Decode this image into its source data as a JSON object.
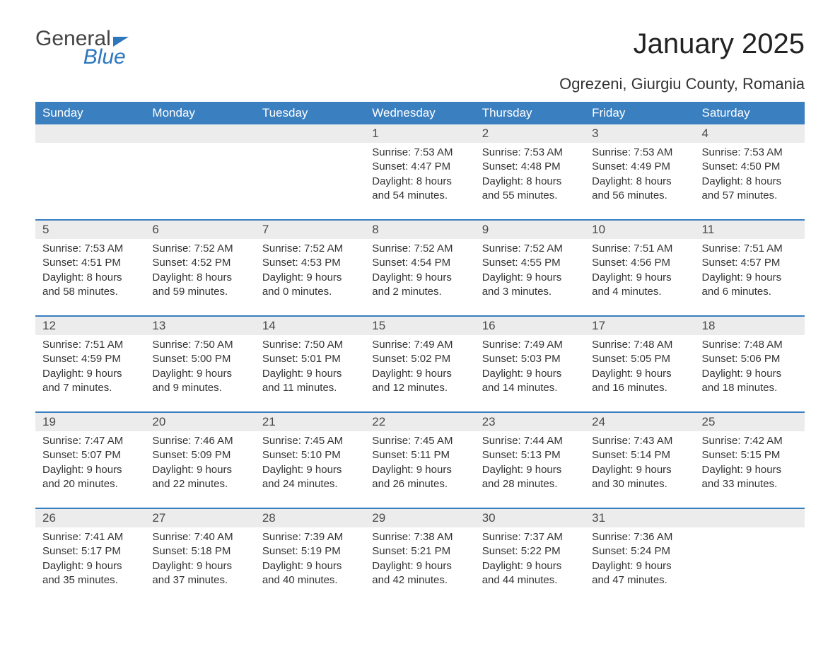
{
  "logo": {
    "word1": "General",
    "word2": "Blue"
  },
  "title": "January 2025",
  "location": "Ogrezeni, Giurgiu County, Romania",
  "colors": {
    "header_bg": "#3a7fc0",
    "header_text": "#ffffff",
    "daynum_bg": "#ececec",
    "body_text": "#333333",
    "accent": "#2c77bd",
    "page_bg": "#ffffff"
  },
  "typography": {
    "title_fontsize": 40,
    "location_fontsize": 22,
    "weekday_fontsize": 17,
    "daynum_fontsize": 17,
    "body_fontsize": 15
  },
  "weekdays": [
    "Sunday",
    "Monday",
    "Tuesday",
    "Wednesday",
    "Thursday",
    "Friday",
    "Saturday"
  ],
  "weeks": [
    [
      null,
      null,
      null,
      {
        "n": "1",
        "sunrise": "Sunrise: 7:53 AM",
        "sunset": "Sunset: 4:47 PM",
        "d1": "Daylight: 8 hours",
        "d2": "and 54 minutes."
      },
      {
        "n": "2",
        "sunrise": "Sunrise: 7:53 AM",
        "sunset": "Sunset: 4:48 PM",
        "d1": "Daylight: 8 hours",
        "d2": "and 55 minutes."
      },
      {
        "n": "3",
        "sunrise": "Sunrise: 7:53 AM",
        "sunset": "Sunset: 4:49 PM",
        "d1": "Daylight: 8 hours",
        "d2": "and 56 minutes."
      },
      {
        "n": "4",
        "sunrise": "Sunrise: 7:53 AM",
        "sunset": "Sunset: 4:50 PM",
        "d1": "Daylight: 8 hours",
        "d2": "and 57 minutes."
      }
    ],
    [
      {
        "n": "5",
        "sunrise": "Sunrise: 7:53 AM",
        "sunset": "Sunset: 4:51 PM",
        "d1": "Daylight: 8 hours",
        "d2": "and 58 minutes."
      },
      {
        "n": "6",
        "sunrise": "Sunrise: 7:52 AM",
        "sunset": "Sunset: 4:52 PM",
        "d1": "Daylight: 8 hours",
        "d2": "and 59 minutes."
      },
      {
        "n": "7",
        "sunrise": "Sunrise: 7:52 AM",
        "sunset": "Sunset: 4:53 PM",
        "d1": "Daylight: 9 hours",
        "d2": "and 0 minutes."
      },
      {
        "n": "8",
        "sunrise": "Sunrise: 7:52 AM",
        "sunset": "Sunset: 4:54 PM",
        "d1": "Daylight: 9 hours",
        "d2": "and 2 minutes."
      },
      {
        "n": "9",
        "sunrise": "Sunrise: 7:52 AM",
        "sunset": "Sunset: 4:55 PM",
        "d1": "Daylight: 9 hours",
        "d2": "and 3 minutes."
      },
      {
        "n": "10",
        "sunrise": "Sunrise: 7:51 AM",
        "sunset": "Sunset: 4:56 PM",
        "d1": "Daylight: 9 hours",
        "d2": "and 4 minutes."
      },
      {
        "n": "11",
        "sunrise": "Sunrise: 7:51 AM",
        "sunset": "Sunset: 4:57 PM",
        "d1": "Daylight: 9 hours",
        "d2": "and 6 minutes."
      }
    ],
    [
      {
        "n": "12",
        "sunrise": "Sunrise: 7:51 AM",
        "sunset": "Sunset: 4:59 PM",
        "d1": "Daylight: 9 hours",
        "d2": "and 7 minutes."
      },
      {
        "n": "13",
        "sunrise": "Sunrise: 7:50 AM",
        "sunset": "Sunset: 5:00 PM",
        "d1": "Daylight: 9 hours",
        "d2": "and 9 minutes."
      },
      {
        "n": "14",
        "sunrise": "Sunrise: 7:50 AM",
        "sunset": "Sunset: 5:01 PM",
        "d1": "Daylight: 9 hours",
        "d2": "and 11 minutes."
      },
      {
        "n": "15",
        "sunrise": "Sunrise: 7:49 AM",
        "sunset": "Sunset: 5:02 PM",
        "d1": "Daylight: 9 hours",
        "d2": "and 12 minutes."
      },
      {
        "n": "16",
        "sunrise": "Sunrise: 7:49 AM",
        "sunset": "Sunset: 5:03 PM",
        "d1": "Daylight: 9 hours",
        "d2": "and 14 minutes."
      },
      {
        "n": "17",
        "sunrise": "Sunrise: 7:48 AM",
        "sunset": "Sunset: 5:05 PM",
        "d1": "Daylight: 9 hours",
        "d2": "and 16 minutes."
      },
      {
        "n": "18",
        "sunrise": "Sunrise: 7:48 AM",
        "sunset": "Sunset: 5:06 PM",
        "d1": "Daylight: 9 hours",
        "d2": "and 18 minutes."
      }
    ],
    [
      {
        "n": "19",
        "sunrise": "Sunrise: 7:47 AM",
        "sunset": "Sunset: 5:07 PM",
        "d1": "Daylight: 9 hours",
        "d2": "and 20 minutes."
      },
      {
        "n": "20",
        "sunrise": "Sunrise: 7:46 AM",
        "sunset": "Sunset: 5:09 PM",
        "d1": "Daylight: 9 hours",
        "d2": "and 22 minutes."
      },
      {
        "n": "21",
        "sunrise": "Sunrise: 7:45 AM",
        "sunset": "Sunset: 5:10 PM",
        "d1": "Daylight: 9 hours",
        "d2": "and 24 minutes."
      },
      {
        "n": "22",
        "sunrise": "Sunrise: 7:45 AM",
        "sunset": "Sunset: 5:11 PM",
        "d1": "Daylight: 9 hours",
        "d2": "and 26 minutes."
      },
      {
        "n": "23",
        "sunrise": "Sunrise: 7:44 AM",
        "sunset": "Sunset: 5:13 PM",
        "d1": "Daylight: 9 hours",
        "d2": "and 28 minutes."
      },
      {
        "n": "24",
        "sunrise": "Sunrise: 7:43 AM",
        "sunset": "Sunset: 5:14 PM",
        "d1": "Daylight: 9 hours",
        "d2": "and 30 minutes."
      },
      {
        "n": "25",
        "sunrise": "Sunrise: 7:42 AM",
        "sunset": "Sunset: 5:15 PM",
        "d1": "Daylight: 9 hours",
        "d2": "and 33 minutes."
      }
    ],
    [
      {
        "n": "26",
        "sunrise": "Sunrise: 7:41 AM",
        "sunset": "Sunset: 5:17 PM",
        "d1": "Daylight: 9 hours",
        "d2": "and 35 minutes."
      },
      {
        "n": "27",
        "sunrise": "Sunrise: 7:40 AM",
        "sunset": "Sunset: 5:18 PM",
        "d1": "Daylight: 9 hours",
        "d2": "and 37 minutes."
      },
      {
        "n": "28",
        "sunrise": "Sunrise: 7:39 AM",
        "sunset": "Sunset: 5:19 PM",
        "d1": "Daylight: 9 hours",
        "d2": "and 40 minutes."
      },
      {
        "n": "29",
        "sunrise": "Sunrise: 7:38 AM",
        "sunset": "Sunset: 5:21 PM",
        "d1": "Daylight: 9 hours",
        "d2": "and 42 minutes."
      },
      {
        "n": "30",
        "sunrise": "Sunrise: 7:37 AM",
        "sunset": "Sunset: 5:22 PM",
        "d1": "Daylight: 9 hours",
        "d2": "and 44 minutes."
      },
      {
        "n": "31",
        "sunrise": "Sunrise: 7:36 AM",
        "sunset": "Sunset: 5:24 PM",
        "d1": "Daylight: 9 hours",
        "d2": "and 47 minutes."
      },
      null
    ]
  ]
}
